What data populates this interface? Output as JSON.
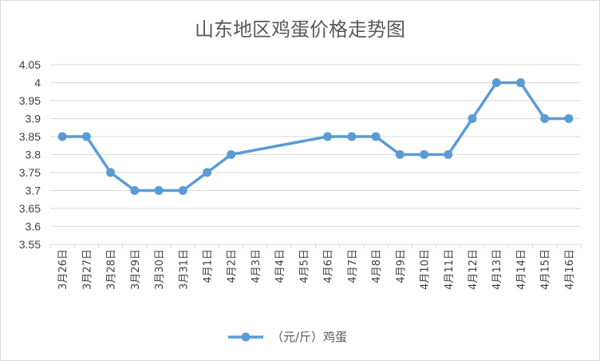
{
  "chart_data": {
    "type": "line",
    "title": "山东地区鸡蛋价格走势图",
    "xlabel": "",
    "ylabel": "",
    "categories": [
      "3月26日",
      "3月27日",
      "3月28日",
      "3月29日",
      "3月30日",
      "3月31日",
      "4月1日",
      "4月2日",
      "4月3日",
      "4月4日",
      "4月5日",
      "4月6日",
      "4月7日",
      "4月8日",
      "4月9日",
      "4月10日",
      "4月11日",
      "4月12日",
      "4月13日",
      "4月14日",
      "4月15日",
      "4月16日"
    ],
    "series": [
      {
        "name": "（元/斤）鸡蛋",
        "color": "#5B9BD5",
        "values": [
          3.85,
          3.85,
          3.75,
          3.7,
          3.7,
          3.7,
          3.75,
          3.8,
          null,
          null,
          null,
          3.85,
          3.85,
          3.85,
          3.8,
          3.8,
          3.8,
          3.9,
          4.0,
          4.0,
          3.9,
          3.9
        ]
      }
    ],
    "ylim": [
      3.55,
      4.05
    ],
    "yticks": [
      "3.55",
      "3.6",
      "3.65",
      "3.7",
      "3.75",
      "3.8",
      "3.85",
      "3.9",
      "3.95",
      "4",
      "4.05"
    ],
    "grid": true,
    "legend": "bottom",
    "gap_handling": "connected"
  }
}
